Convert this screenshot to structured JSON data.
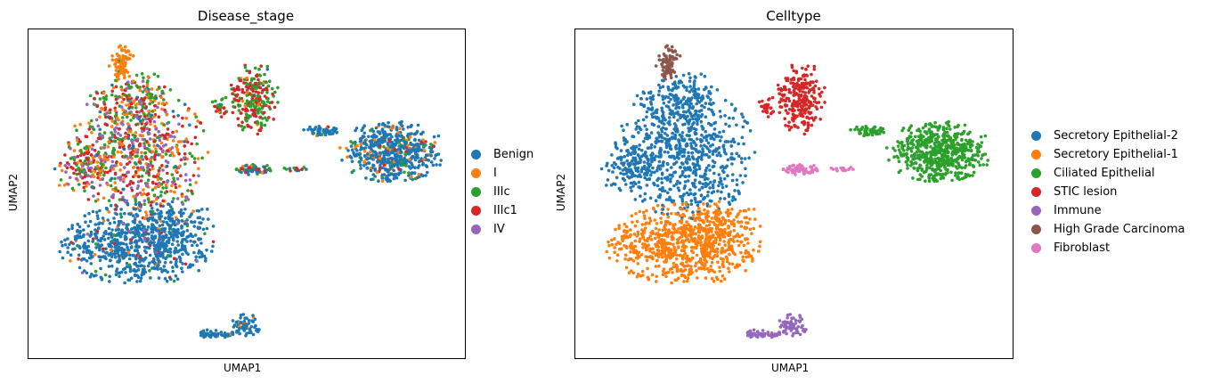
{
  "chart_data": [
    {
      "type": "scatter",
      "title": "Disease_stage",
      "xlabel": "UMAP1",
      "ylabel": "UMAP2",
      "legend_position": "right",
      "grid": false,
      "ticks": "none",
      "series": [
        {
          "name": "Benign",
          "color": "#1f77b4"
        },
        {
          "name": "I",
          "color": "#ff7f0e"
        },
        {
          "name": "IIIc",
          "color": "#2ca02c"
        },
        {
          "name": "IIIc1",
          "color": "#d62728"
        },
        {
          "name": "IV",
          "color": "#9467bd"
        }
      ]
    },
    {
      "type": "scatter",
      "title": "Celltype",
      "xlabel": "UMAP1",
      "ylabel": "UMAP2",
      "legend_position": "right",
      "grid": false,
      "ticks": "none",
      "series": [
        {
          "name": "Secretory Epithelial-2",
          "color": "#1f77b4"
        },
        {
          "name": "Secretory Epithelial-1",
          "color": "#ff7f0e"
        },
        {
          "name": "Ciliated Epithelial",
          "color": "#2ca02c"
        },
        {
          "name": "STIC lesion",
          "color": "#d62728"
        },
        {
          "name": "Immune",
          "color": "#9467bd"
        },
        {
          "name": "High Grade Carcinoma",
          "color": "#8c564b"
        },
        {
          "name": "Fibroblast",
          "color": "#e377c2"
        }
      ]
    }
  ]
}
